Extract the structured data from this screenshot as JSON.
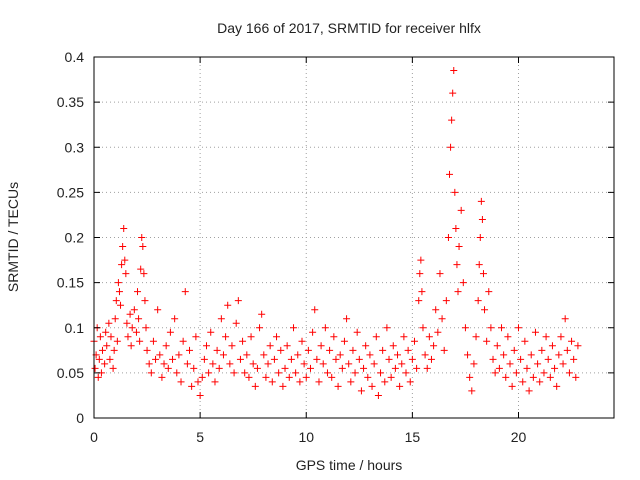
{
  "chart_data": {
    "type": "scatter",
    "title": "Day 166 of 2017, SRMTID for receiver hlfx",
    "xlabel": "GPS time / hours",
    "ylabel": "SRMTID / TECUs",
    "xlim": [
      0,
      24.5
    ],
    "ylim": [
      0,
      0.4
    ],
    "xticks": [
      0,
      5,
      10,
      15,
      20
    ],
    "xtick_labels": [
      "0",
      "5",
      "10",
      "15",
      "20"
    ],
    "yticks": [
      0,
      0.05,
      0.1,
      0.15,
      0.2,
      0.25,
      0.3,
      0.35,
      0.4
    ],
    "ytick_labels": [
      "0",
      "0.05",
      "0.1",
      "0.15",
      "0.2",
      "0.25",
      "0.3",
      "0.35",
      "0.4"
    ],
    "grid": true,
    "marker": "+",
    "color": "#ff0000",
    "series": [
      {
        "points": [
          [
            0.0,
            0.085
          ],
          [
            0.05,
            0.055
          ],
          [
            0.1,
            0.07
          ],
          [
            0.15,
            0.1
          ],
          [
            0.2,
            0.045
          ],
          [
            0.25,
            0.065
          ],
          [
            0.3,
            0.09
          ],
          [
            0.35,
            0.05
          ],
          [
            0.4,
            0.075
          ],
          [
            0.5,
            0.06
          ],
          [
            0.55,
            0.095
          ],
          [
            0.6,
            0.08
          ],
          [
            0.7,
            0.105
          ],
          [
            0.75,
            0.065
          ],
          [
            0.8,
            0.09
          ],
          [
            0.9,
            0.055
          ],
          [
            0.95,
            0.075
          ],
          [
            1.0,
            0.11
          ],
          [
            1.05,
            0.13
          ],
          [
            1.1,
            0.085
          ],
          [
            1.15,
            0.15
          ],
          [
            1.2,
            0.14
          ],
          [
            1.25,
            0.125
          ],
          [
            1.3,
            0.17
          ],
          [
            1.35,
            0.19
          ],
          [
            1.4,
            0.21
          ],
          [
            1.45,
            0.175
          ],
          [
            1.5,
            0.16
          ],
          [
            1.55,
            0.105
          ],
          [
            1.6,
            0.09
          ],
          [
            1.7,
            0.115
          ],
          [
            1.75,
            0.08
          ],
          [
            1.8,
            0.1
          ],
          [
            1.9,
            0.12
          ],
          [
            2.0,
            0.095
          ],
          [
            2.05,
            0.14
          ],
          [
            2.1,
            0.11
          ],
          [
            2.15,
            0.085
          ],
          [
            2.2,
            0.165
          ],
          [
            2.25,
            0.2
          ],
          [
            2.3,
            0.19
          ],
          [
            2.35,
            0.16
          ],
          [
            2.4,
            0.13
          ],
          [
            2.45,
            0.1
          ],
          [
            2.5,
            0.075
          ],
          [
            2.6,
            0.06
          ],
          [
            2.7,
            0.05
          ],
          [
            2.8,
            0.085
          ],
          [
            2.9,
            0.065
          ],
          [
            3.0,
            0.12
          ],
          [
            3.1,
            0.07
          ],
          [
            3.2,
            0.045
          ],
          [
            3.3,
            0.06
          ],
          [
            3.4,
            0.08
          ],
          [
            3.5,
            0.055
          ],
          [
            3.6,
            0.095
          ],
          [
            3.7,
            0.065
          ],
          [
            3.8,
            0.11
          ],
          [
            3.9,
            0.05
          ],
          [
            4.0,
            0.07
          ],
          [
            4.1,
            0.04
          ],
          [
            4.2,
            0.085
          ],
          [
            4.3,
            0.14
          ],
          [
            4.4,
            0.06
          ],
          [
            4.5,
            0.075
          ],
          [
            4.6,
            0.035
          ],
          [
            4.7,
            0.055
          ],
          [
            4.8,
            0.09
          ],
          [
            4.9,
            0.04
          ],
          [
            5.0,
            0.025
          ],
          [
            5.1,
            0.045
          ],
          [
            5.2,
            0.065
          ],
          [
            5.3,
            0.08
          ],
          [
            5.4,
            0.05
          ],
          [
            5.5,
            0.095
          ],
          [
            5.6,
            0.06
          ],
          [
            5.7,
            0.04
          ],
          [
            5.8,
            0.075
          ],
          [
            5.9,
            0.055
          ],
          [
            6.0,
            0.11
          ],
          [
            6.1,
            0.07
          ],
          [
            6.2,
            0.09
          ],
          [
            6.3,
            0.125
          ],
          [
            6.4,
            0.06
          ],
          [
            6.5,
            0.08
          ],
          [
            6.6,
            0.05
          ],
          [
            6.7,
            0.105
          ],
          [
            6.8,
            0.13
          ],
          [
            6.9,
            0.065
          ],
          [
            7.0,
            0.085
          ],
          [
            7.1,
            0.05
          ],
          [
            7.2,
            0.07
          ],
          [
            7.3,
            0.045
          ],
          [
            7.4,
            0.09
          ],
          [
            7.5,
            0.06
          ],
          [
            7.6,
            0.035
          ],
          [
            7.7,
            0.055
          ],
          [
            7.8,
            0.1
          ],
          [
            7.9,
            0.115
          ],
          [
            8.0,
            0.07
          ],
          [
            8.1,
            0.045
          ],
          [
            8.2,
            0.06
          ],
          [
            8.3,
            0.08
          ],
          [
            8.4,
            0.04
          ],
          [
            8.5,
            0.065
          ],
          [
            8.6,
            0.09
          ],
          [
            8.7,
            0.05
          ],
          [
            8.8,
            0.075
          ],
          [
            8.9,
            0.035
          ],
          [
            9.0,
            0.055
          ],
          [
            9.1,
            0.08
          ],
          [
            9.2,
            0.045
          ],
          [
            9.3,
            0.065
          ],
          [
            9.4,
            0.1
          ],
          [
            9.5,
            0.05
          ],
          [
            9.6,
            0.07
          ],
          [
            9.7,
            0.04
          ],
          [
            9.8,
            0.085
          ],
          [
            9.9,
            0.06
          ],
          [
            10.0,
            0.045
          ],
          [
            10.1,
            0.075
          ],
          [
            10.2,
            0.055
          ],
          [
            10.3,
            0.095
          ],
          [
            10.4,
            0.12
          ],
          [
            10.5,
            0.065
          ],
          [
            10.6,
            0.04
          ],
          [
            10.7,
            0.08
          ],
          [
            10.8,
            0.06
          ],
          [
            10.9,
            0.1
          ],
          [
            11.0,
            0.05
          ],
          [
            11.1,
            0.075
          ],
          [
            11.2,
            0.045
          ],
          [
            11.3,
            0.09
          ],
          [
            11.4,
            0.065
          ],
          [
            11.5,
            0.035
          ],
          [
            11.6,
            0.07
          ],
          [
            11.7,
            0.055
          ],
          [
            11.8,
            0.085
          ],
          [
            11.9,
            0.11
          ],
          [
            12.0,
            0.06
          ],
          [
            12.1,
            0.04
          ],
          [
            12.2,
            0.075
          ],
          [
            12.3,
            0.05
          ],
          [
            12.4,
            0.095
          ],
          [
            12.5,
            0.065
          ],
          [
            12.6,
            0.03
          ],
          [
            12.7,
            0.055
          ],
          [
            12.8,
            0.08
          ],
          [
            12.9,
            0.045
          ],
          [
            13.0,
            0.07
          ],
          [
            13.1,
            0.035
          ],
          [
            13.2,
            0.06
          ],
          [
            13.3,
            0.09
          ],
          [
            13.4,
            0.025
          ],
          [
            13.5,
            0.05
          ],
          [
            13.6,
            0.075
          ],
          [
            13.7,
            0.04
          ],
          [
            13.8,
            0.1
          ],
          [
            13.9,
            0.065
          ],
          [
            14.0,
            0.045
          ],
          [
            14.1,
            0.08
          ],
          [
            14.2,
            0.055
          ],
          [
            14.3,
            0.07
          ],
          [
            14.4,
            0.035
          ],
          [
            14.5,
            0.06
          ],
          [
            14.6,
            0.09
          ],
          [
            14.7,
            0.05
          ],
          [
            14.8,
            0.075
          ],
          [
            14.9,
            0.04
          ],
          [
            15.0,
            0.065
          ],
          [
            15.1,
            0.085
          ],
          [
            15.2,
            0.055
          ],
          [
            15.3,
            0.13
          ],
          [
            15.35,
            0.16
          ],
          [
            15.4,
            0.175
          ],
          [
            15.45,
            0.14
          ],
          [
            15.5,
            0.1
          ],
          [
            15.6,
            0.07
          ],
          [
            15.7,
            0.055
          ],
          [
            15.8,
            0.09
          ],
          [
            15.9,
            0.065
          ],
          [
            16.0,
            0.08
          ],
          [
            16.1,
            0.12
          ],
          [
            16.2,
            0.095
          ],
          [
            16.3,
            0.16
          ],
          [
            16.4,
            0.11
          ],
          [
            16.5,
            0.075
          ],
          [
            16.6,
            0.13
          ],
          [
            16.7,
            0.2
          ],
          [
            16.75,
            0.27
          ],
          [
            16.8,
            0.3
          ],
          [
            16.85,
            0.33
          ],
          [
            16.9,
            0.36
          ],
          [
            16.95,
            0.385
          ],
          [
            17.0,
            0.25
          ],
          [
            17.05,
            0.21
          ],
          [
            17.1,
            0.17
          ],
          [
            17.15,
            0.14
          ],
          [
            17.2,
            0.19
          ],
          [
            17.3,
            0.23
          ],
          [
            17.4,
            0.15
          ],
          [
            17.5,
            0.1
          ],
          [
            17.6,
            0.07
          ],
          [
            17.7,
            0.045
          ],
          [
            17.8,
            0.03
          ],
          [
            17.9,
            0.06
          ],
          [
            18.0,
            0.09
          ],
          [
            18.1,
            0.13
          ],
          [
            18.15,
            0.17
          ],
          [
            18.2,
            0.2
          ],
          [
            18.25,
            0.24
          ],
          [
            18.3,
            0.22
          ],
          [
            18.35,
            0.16
          ],
          [
            18.4,
            0.12
          ],
          [
            18.5,
            0.085
          ],
          [
            18.6,
            0.14
          ],
          [
            18.7,
            0.1
          ],
          [
            18.8,
            0.065
          ],
          [
            18.9,
            0.05
          ],
          [
            19.0,
            0.08
          ],
          [
            19.1,
            0.055
          ],
          [
            19.2,
            0.1
          ],
          [
            19.3,
            0.07
          ],
          [
            19.4,
            0.045
          ],
          [
            19.5,
            0.09
          ],
          [
            19.6,
            0.06
          ],
          [
            19.7,
            0.035
          ],
          [
            19.8,
            0.075
          ],
          [
            19.9,
            0.05
          ],
          [
            20.0,
            0.1
          ],
          [
            20.1,
            0.065
          ],
          [
            20.2,
            0.04
          ],
          [
            20.3,
            0.085
          ],
          [
            20.4,
            0.055
          ],
          [
            20.5,
            0.03
          ],
          [
            20.6,
            0.07
          ],
          [
            20.7,
            0.045
          ],
          [
            20.8,
            0.095
          ],
          [
            20.9,
            0.06
          ],
          [
            21.0,
            0.04
          ],
          [
            21.1,
            0.075
          ],
          [
            21.2,
            0.05
          ],
          [
            21.3,
            0.09
          ],
          [
            21.4,
            0.065
          ],
          [
            21.5,
            0.045
          ],
          [
            21.6,
            0.08
          ],
          [
            21.7,
            0.055
          ],
          [
            21.8,
            0.035
          ],
          [
            21.9,
            0.07
          ],
          [
            22.0,
            0.09
          ],
          [
            22.1,
            0.06
          ],
          [
            22.2,
            0.11
          ],
          [
            22.3,
            0.075
          ],
          [
            22.4,
            0.05
          ],
          [
            22.5,
            0.085
          ],
          [
            22.6,
            0.065
          ],
          [
            22.7,
            0.045
          ],
          [
            22.8,
            0.08
          ]
        ]
      }
    ]
  }
}
